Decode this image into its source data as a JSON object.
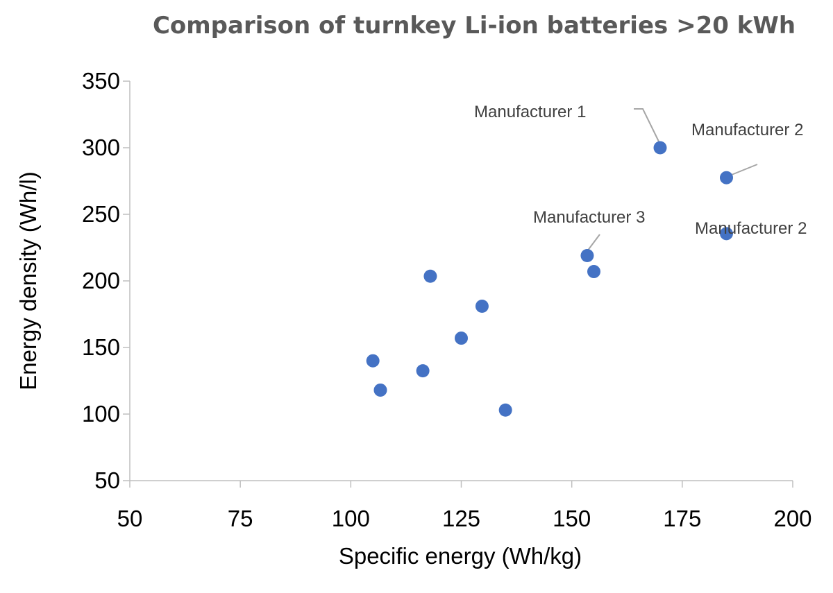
{
  "chart_data": {
    "type": "scatter",
    "title": "Comparison of turnkey Li-ion batteries >20 kWh",
    "xlabel": "Specific energy (Wh/kg)",
    "ylabel": "Energy density (Wh/l)",
    "xlim": [
      50,
      200
    ],
    "ylim": [
      50,
      350
    ],
    "xticks": [
      "50",
      "75",
      "100",
      "125",
      "150",
      "175",
      "200"
    ],
    "yticks": [
      "50",
      "100",
      "150",
      "200",
      "250",
      "300",
      "350"
    ],
    "grid": false,
    "legend": "none",
    "point_color": "#4472C4",
    "series": [
      {
        "points": [
          {
            "x": 105,
            "y": 140
          },
          {
            "x": 106.7,
            "y": 118
          },
          {
            "x": 116.3,
            "y": 132.5
          },
          {
            "x": 118,
            "y": 203.5
          },
          {
            "x": 125,
            "y": 157
          },
          {
            "x": 129.7,
            "y": 181
          },
          {
            "x": 135,
            "y": 103
          },
          {
            "x": 153.5,
            "y": 219
          },
          {
            "x": 155,
            "y": 207
          },
          {
            "x": 170,
            "y": 300
          },
          {
            "x": 185,
            "y": 277.5
          },
          {
            "x": 185,
            "y": 235.5
          }
        ]
      }
    ],
    "annotations": [
      {
        "text": "Manufacturer 1",
        "x": 170,
        "y": 300
      },
      {
        "text": "Manufacturer 2",
        "x": 185,
        "y": 277.5
      },
      {
        "text": "Manufacturer 3",
        "x": 153.5,
        "y": 219
      },
      {
        "text": "Manufacturer 2",
        "x": 185,
        "y": 235.5
      }
    ]
  }
}
